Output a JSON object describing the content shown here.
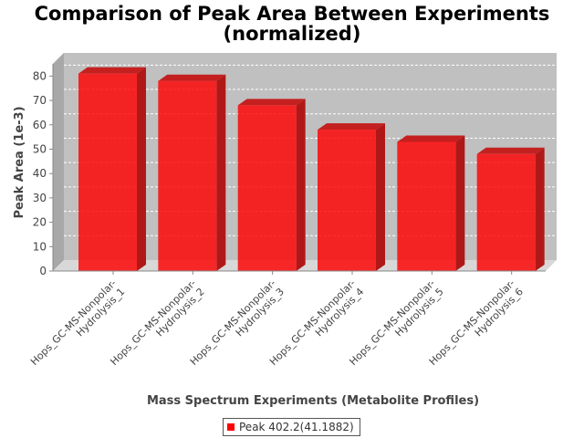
{
  "chart_data": {
    "type": "bar",
    "title_line1": "Comparison of Peak Area Between Experiments",
    "title_line2": "(normalized)",
    "xlabel": "Mass Spectrum Experiments (Metabolite Profiles)",
    "ylabel": "Peak Area (1e-3)",
    "ylim": [
      0,
      85
    ],
    "yticks": [
      0,
      10,
      20,
      30,
      40,
      50,
      60,
      70,
      80
    ],
    "grid": true,
    "legend_position": "bottom",
    "categories": [
      [
        "Hops_GC-MS-Nonpolar-",
        "Hydrolysis_1"
      ],
      [
        "Hops_GC-MS-Nonpolar-",
        "Hydrolysis_2"
      ],
      [
        "Hops_GC-MS-Nonpolar-",
        "Hydrolysis_3"
      ],
      [
        "Hops_GC-MS-Nonpolar-",
        "Hydrolysis_4"
      ],
      [
        "Hops_GC-MS-Nonpolar-",
        "Hydrolysis_5"
      ],
      [
        "Hops_GC-MS-Nonpolar-",
        "Hydrolysis_6"
      ]
    ],
    "series": [
      {
        "name": "Peak 402.2(41.1882)",
        "values": [
          81,
          78,
          68,
          58,
          53,
          48
        ],
        "color": "#ff0000"
      }
    ]
  }
}
